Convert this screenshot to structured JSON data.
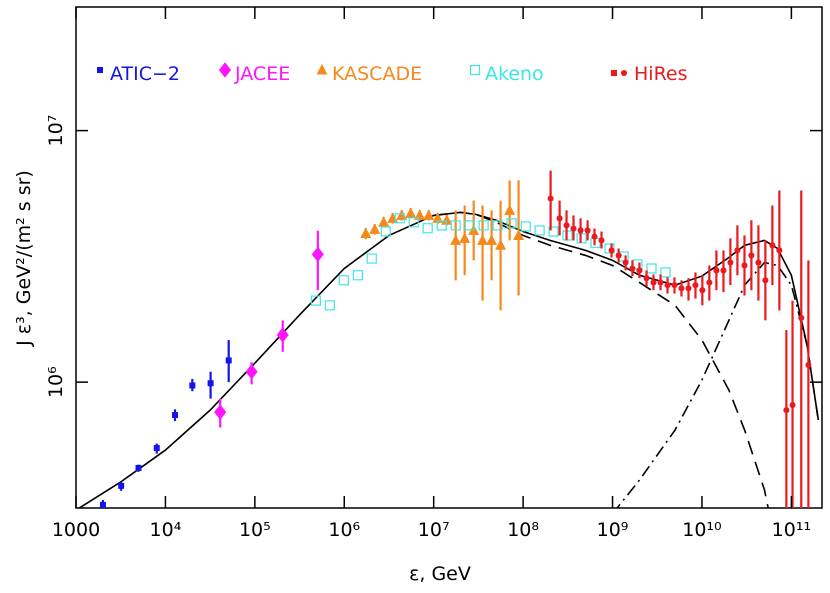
{
  "chart_data": {
    "type": "scatter",
    "xlabel": "ε, GeV",
    "ylabel": "J ε³, GeV²/(m² s sr)",
    "xscale": "log",
    "yscale": "log",
    "xlim": [
      1000,
      220000000000.0
    ],
    "ylim": [
      316000,
      31000000
    ],
    "xticks": [
      1000,
      {
        "value": 10000,
        "label": "10⁴"
      },
      {
        "value": 100000,
        "label": "10⁵"
      },
      {
        "value": 1000000,
        "label": "10⁶"
      },
      {
        "value": 10000000,
        "label": "10⁷"
      },
      {
        "value": 100000000,
        "label": "10⁸"
      },
      {
        "value": 1000000000,
        "label": "10⁹"
      },
      {
        "value": 10000000000,
        "label": "10¹⁰"
      },
      {
        "value": 100000000000,
        "label": "10¹¹"
      }
    ],
    "yticks": [
      {
        "value": 1000000,
        "label": "10⁶"
      },
      {
        "value": 10000000,
        "label": "10⁷"
      }
    ],
    "legend": "top",
    "series": [
      {
        "name": "ATIC−2",
        "color": "#1414e6",
        "marker": "square",
        "x": [
          2000,
          3200,
          5000,
          8000,
          12800,
          20000,
          32000,
          51000
        ],
        "values": [
          325000,
          387000,
          456000,
          547000,
          740000,
          970000,
          990000,
          1220000
        ],
        "lower": [
          310000,
          370000,
          440000,
          520000,
          700000,
          920000,
          860000,
          1000000
        ],
        "upper": [
          340000,
          400000,
          470000,
          570000,
          780000,
          1030000,
          1100000,
          1470000
        ]
      },
      {
        "name": "JACEE",
        "color": "#ff14ff",
        "marker": "diamond",
        "x": [
          41000,
          92000,
          205000,
          506000
        ],
        "values": [
          760000,
          1100000,
          1540000,
          3220000
        ],
        "lower": [
          660000,
          980000,
          1320000,
          2320000
        ],
        "upper": [
          860000,
          1200000,
          1760000,
          4000000
        ]
      },
      {
        "name": "KASCADE",
        "color": "#f5891e",
        "marker": "triangle",
        "x": [
          1740000,
          2190000,
          2760000,
          3480000,
          4390000,
          5530000,
          6970000,
          8800000,
          11100000,
          14000000,
          17600000,
          22200000,
          28000000,
          35200000,
          44400000,
          56000000,
          70700000,
          89000000
        ],
        "values": [
          3900000,
          4050000,
          4320000,
          4480000,
          4600000,
          4690000,
          4600000,
          4600000,
          4480000,
          4400000,
          3660000,
          3730000,
          4010000,
          3660000,
          3660000,
          3500000,
          4820000,
          3830000
        ],
        "lower": [
          3700000,
          3860000,
          4120000,
          4270000,
          4390000,
          4480000,
          4390000,
          4390000,
          4270000,
          4200000,
          2540000,
          2660000,
          3050000,
          2110000,
          2540000,
          1930000,
          3660000,
          2210000
        ],
        "upper": [
          4100000,
          4250000,
          4540000,
          4700000,
          4830000,
          4920000,
          4830000,
          4830000,
          4700000,
          4620000,
          4820000,
          5040000,
          5270000,
          5040000,
          4820000,
          5270000,
          6340000,
          6340000
        ]
      },
      {
        "name": "Akeno",
        "color": "#3ce6e6",
        "marker": "open-square",
        "x": [
          481000,
          689000,
          986000,
          1420000,
          2030000,
          2910000,
          4170000,
          5980000,
          8570000,
          12300000,
          17600000,
          25200000,
          36200000,
          51900000,
          74400000,
          107000000,
          153000000,
          219000000,
          314000000,
          451000000,
          646000000,
          925000000,
          1330000000,
          1900000000,
          2730000000,
          3910000000
        ],
        "values": [
          2110000,
          2020000,
          2540000,
          2660000,
          3100000,
          3970000,
          4480000,
          4320000,
          4090000,
          4200000,
          4200000,
          4200000,
          4200000,
          4200000,
          4280000,
          4160000,
          4010000,
          3970000,
          3830000,
          3730000,
          3580000,
          3400000,
          3160000,
          2940000,
          2830000,
          2730000
        ]
      },
      {
        "name": "HiRes",
        "color": "#eb1a1e",
        "marker": "circle",
        "x": [
          203000000,
          256000000,
          306000000,
          366000000,
          439000000,
          526000000,
          629000000,
          753000000,
          975000000,
          1170000000,
          1400000000,
          1670000000,
          2000000000,
          2400000000,
          2870000000,
          3440000000,
          4120000000,
          4930000000,
          5900000000,
          7070000000,
          8460000000,
          10100000000,
          12100000000,
          14500000000,
          17400000000,
          20800000000,
          24900000000,
          29900000000,
          35700000000,
          42800000000,
          51200000000,
          61300000000,
          73400000000,
          87900000000,
          103000000000,
          129000000000,
          155000000000
        ],
        "values": [
          5370000,
          4480000,
          4200000,
          4080000,
          4010000,
          4010000,
          3790000,
          3660000,
          3340000,
          3190000,
          2990000,
          2830000,
          2780000,
          2590000,
          2490000,
          2490000,
          2430000,
          2430000,
          2360000,
          2360000,
          2430000,
          2320000,
          2490000,
          2780000,
          2780000,
          2990000,
          3340000,
          2910000,
          3190000,
          2990000,
          2540000,
          3500000,
          3340000,
          774000,
          811000,
          1800000,
          1170000
        ],
        "lower": [
          4010000,
          3830000,
          3660000,
          3660000,
          3580000,
          3660000,
          3500000,
          3400000,
          3130000,
          2990000,
          2780000,
          2640000,
          2590000,
          2410000,
          2320000,
          2320000,
          2250000,
          2250000,
          2190000,
          2110000,
          2150000,
          2020000,
          2110000,
          2320000,
          2280000,
          2430000,
          2660000,
          2210000,
          2320000,
          2110000,
          1760000,
          2430000,
          1930000,
          283000,
          283000,
          283000,
          283000
        ],
        "upper": [
          6930000,
          5270000,
          4820000,
          4600000,
          4480000,
          4400000,
          4080000,
          3970000,
          3560000,
          3400000,
          3190000,
          3050000,
          2990000,
          2780000,
          2680000,
          2680000,
          2610000,
          2610000,
          2540000,
          2590000,
          2730000,
          2660000,
          2910000,
          3340000,
          3340000,
          3730000,
          4200000,
          3830000,
          4400000,
          4200000,
          3660000,
          5040000,
          5780000,
          1610000,
          2110000,
          5780000,
          3050000
        ]
      }
    ],
    "curves": [
      {
        "style": "solid",
        "color": "#000000",
        "x": [
          1000,
          3162,
          10000,
          31623,
          100000,
          316228,
          1000000,
          3162278,
          10000000,
          20000000,
          30000000,
          50000000,
          100000000,
          200000000,
          500000000,
          1000000000,
          2000000000,
          5000000000,
          10000000000,
          20000000000,
          30000000000,
          50000000000,
          70000000000,
          100000000000,
          150000000000,
          200000000000
        ],
        "values": [
          310000,
          401000,
          537000,
          774000,
          1190000,
          1850000,
          2830000,
          3830000,
          4600000,
          4730000,
          4640000,
          4400000,
          3970000,
          3660000,
          3340000,
          3050000,
          2660000,
          2430000,
          2640000,
          3130000,
          3500000,
          3660000,
          3400000,
          2660000,
          1400000,
          707000
        ]
      },
      {
        "style": "dashed",
        "color": "#000000",
        "x": [
          10000000,
          20000000,
          30000000,
          50000000,
          100000000,
          200000000,
          500000000,
          1000000000,
          2000000000,
          5000000000,
          10000000000,
          20000000000,
          30000000000,
          50000000000,
          55000000000
        ],
        "values": [
          4600000,
          4730000,
          4640000,
          4320000,
          3830000,
          3500000,
          3190000,
          2910000,
          2490000,
          2020000,
          1470000,
          930000,
          645000,
          373000,
          316000
        ]
      },
      {
        "style": "dashdot",
        "color": "#000000",
        "x": [
          1000000000,
          2000000000,
          5000000000,
          10000000000,
          20000000000,
          30000000000,
          50000000000,
          70000000000,
          100000000000,
          150000000000,
          200000000000
        ],
        "values": [
          300000,
          408000,
          645000,
          1020000,
          1760000,
          2430000,
          2990000,
          2910000,
          2430000,
          1400000,
          707000
        ]
      }
    ]
  }
}
